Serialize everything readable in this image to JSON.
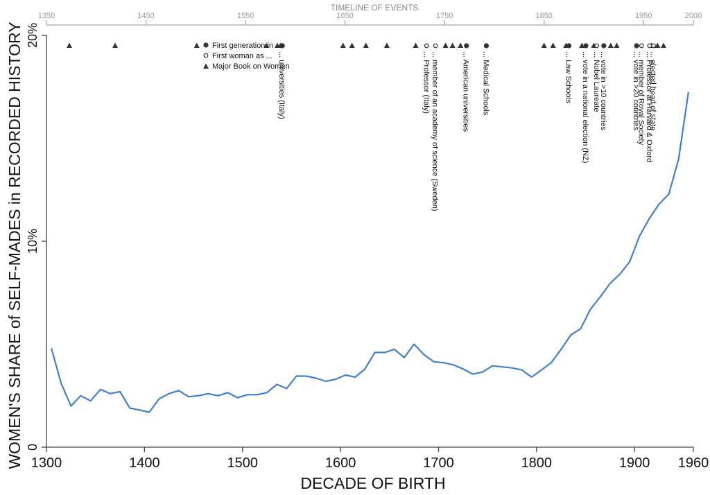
{
  "chart_data": {
    "type": "line",
    "ylabel": "WOMEN'S SHARE of SELF-MADES in RECORDED HISTORY",
    "xlabel": "DECADE OF BIRTH",
    "xlim": [
      1300,
      1960
    ],
    "ylim": [
      0,
      20
    ],
    "x_ticks": [
      1300,
      1400,
      1500,
      1600,
      1700,
      1800,
      1900,
      1960
    ],
    "x_tick_labels": [
      "1300",
      "1400",
      "1500",
      "1600",
      "1700",
      "1800",
      "1900",
      "1960"
    ],
    "y_ticks": [
      0,
      10,
      20
    ],
    "y_tick_labels": [
      "0",
      "10%",
      "20%"
    ],
    "line_color": "#3f7fd4",
    "series": [
      {
        "x": [
          1305,
          1315,
          1325,
          1335,
          1345,
          1355,
          1365,
          1375,
          1385,
          1395,
          1405,
          1415,
          1425,
          1435,
          1445,
          1455,
          1465,
          1475,
          1485,
          1495,
          1505,
          1515,
          1525,
          1535,
          1545,
          1555,
          1565,
          1575,
          1585,
          1595,
          1605,
          1615,
          1625,
          1635,
          1645,
          1655,
          1665,
          1675,
          1685,
          1695,
          1705,
          1715,
          1725,
          1735,
          1745,
          1755,
          1765,
          1775,
          1785,
          1795,
          1805,
          1815,
          1825,
          1835,
          1845,
          1855,
          1865,
          1875,
          1885,
          1895,
          1905,
          1915,
          1925,
          1935,
          1945,
          1955
        ],
        "y": [
          4.8,
          3.1,
          2.0,
          2.5,
          2.25,
          2.8,
          2.6,
          2.7,
          1.9,
          1.8,
          1.7,
          2.35,
          2.6,
          2.75,
          2.45,
          2.5,
          2.6,
          2.5,
          2.65,
          2.4,
          2.55,
          2.55,
          2.65,
          3.05,
          2.85,
          3.45,
          3.45,
          3.35,
          3.2,
          3.3,
          3.5,
          3.4,
          3.8,
          4.6,
          4.6,
          4.75,
          4.35,
          5.0,
          4.5,
          4.15,
          4.1,
          4.0,
          3.8,
          3.55,
          3.65,
          3.95,
          3.9,
          3.85,
          3.75,
          3.4,
          3.75,
          4.1,
          4.75,
          5.45,
          5.75,
          6.7,
          7.3,
          7.95,
          8.4,
          9.0,
          10.25,
          11.1,
          11.8,
          12.3,
          14.0,
          17.25
        ]
      }
    ],
    "timeline": {
      "title": "TIMELINE OF EVENTS",
      "xlim": [
        1350,
        2000
      ],
      "ticks": [
        1350,
        1450,
        1550,
        1650,
        1750,
        1850,
        1950,
        2000
      ],
      "tick_labels": [
        "1350",
        "1450",
        "1550",
        "1650",
        "1750",
        "1850",
        "1950",
        "2000"
      ],
      "legend": [
        {
          "symbol": "circle-filled",
          "label": "First generation in ..."
        },
        {
          "symbol": "circle-open",
          "label": "First woman as ..."
        },
        {
          "symbol": "triangle",
          "label": "Major Book on Women"
        }
      ],
      "books": [
        1373,
        1419,
        1501,
        1571,
        1582,
        1585,
        1648,
        1657,
        1671,
        1692,
        1721,
        1751,
        1758,
        1766,
        1850,
        1859,
        1872,
        1888,
        1900,
        1917,
        1923,
        1958,
        1964,
        1970
      ],
      "first_generation": [
        {
          "year": 1587,
          "label": "... universities (Italy)"
        },
        {
          "year": 1772,
          "label": "... American universities"
        },
        {
          "year": 1792,
          "label": "... Medical Schools"
        },
        {
          "year": 1875,
          "label": "... Law Schools"
        },
        {
          "year": 1892,
          "label": "... vote in a national election (NZ)"
        },
        {
          "year": 1910,
          "label": "... vote in >10 countries"
        },
        {
          "year": 1943,
          "label": "... vote in >20 countries"
        }
      ],
      "first_woman": [
        {
          "year": 1732,
          "label": "... Professor (Italy)"
        },
        {
          "year": 1741,
          "label": "... member of an academy of science (Sweden)"
        },
        {
          "year": 1903,
          "label": "... Nobel Laureate"
        },
        {
          "year": 1948,
          "label": "... member of Royal Society"
        },
        {
          "year": 1956,
          "label": "... Professor at Harvard & Oxford"
        },
        {
          "year": 1960,
          "label": "... elected head of state"
        }
      ]
    }
  }
}
